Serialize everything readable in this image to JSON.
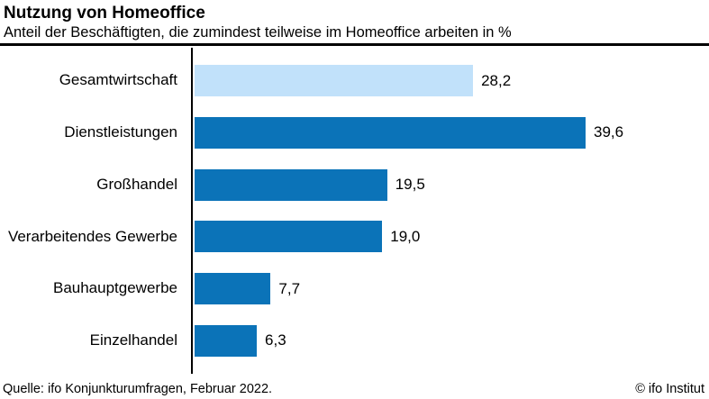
{
  "header": {
    "title": "Nutzung von Homeoffice",
    "subtitle": "Anteil der Beschäftigten, die zumindest teilweise im Homeoffice arbeiten in %"
  },
  "footer": {
    "source": "Quelle: ifo Konjunkturumfragen, Februar 2022.",
    "copyright": "© ifo Institut"
  },
  "colors": {
    "bar_default": "#0b73b8",
    "bar_highlight": "#c1e1fa",
    "axis": "#000000",
    "rule": "#000000",
    "text": "#000000"
  },
  "chart_data": {
    "type": "bar",
    "orientation": "horizontal",
    "title": "Nutzung von Homeoffice",
    "subtitle": "Anteil der Beschäftigten, die zumindest teilweise im Homeoffice arbeiten in %",
    "categories": [
      "Gesamtwirtschaft",
      "Dienstleistungen",
      "Großhandel",
      "Verarbeitendes Gewerbe",
      "Bauhauptgewerbe",
      "Einzelhandel"
    ],
    "values": [
      28.2,
      39.6,
      19.5,
      19.0,
      7.7,
      6.3
    ],
    "value_labels": [
      "28,2",
      "39,6",
      "19,5",
      "19,0",
      "7,7",
      "6,3"
    ],
    "unit": "%",
    "highlight_index": 0,
    "xlim": [
      0,
      41
    ],
    "grid": false,
    "legend": false,
    "value_labels_position": "end-of-bar",
    "source": "Quelle: ifo Konjunkturumfragen, Februar 2022.",
    "copyright": "© ifo Institut"
  }
}
